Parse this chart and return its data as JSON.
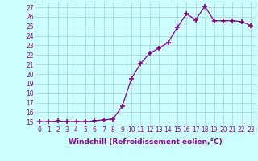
{
  "x": [
    0,
    1,
    2,
    3,
    4,
    5,
    6,
    7,
    8,
    9,
    10,
    11,
    12,
    13,
    14,
    15,
    16,
    17,
    18,
    19,
    20,
    21,
    22,
    23
  ],
  "y": [
    15.0,
    15.0,
    15.1,
    15.0,
    15.05,
    15.0,
    15.1,
    15.2,
    15.3,
    16.6,
    19.5,
    21.1,
    22.2,
    22.7,
    23.3,
    24.9,
    26.3,
    25.7,
    27.1,
    25.6,
    25.6,
    25.6,
    25.5,
    25.1
  ],
  "line_color": "#880088",
  "marker": "+",
  "marker_size": 4,
  "marker_lw": 1.2,
  "bg_color": "#ccffff",
  "grid_color": "#aacccc",
  "xlabel": "Windchill (Refroidissement éolien,°C)",
  "ylabel_ticks": [
    15,
    16,
    17,
    18,
    19,
    20,
    21,
    22,
    23,
    24,
    25,
    26,
    27
  ],
  "xlim": [
    -0.5,
    23.5
  ],
  "ylim": [
    14.6,
    27.6
  ],
  "xticks": [
    0,
    1,
    2,
    3,
    4,
    5,
    6,
    7,
    8,
    9,
    10,
    11,
    12,
    13,
    14,
    15,
    16,
    17,
    18,
    19,
    20,
    21,
    22,
    23
  ],
  "tick_color": "#880088",
  "label_color": "#880088",
  "font_size": 5.5,
  "xlabel_font_size": 6.5,
  "line_width": 0.9
}
